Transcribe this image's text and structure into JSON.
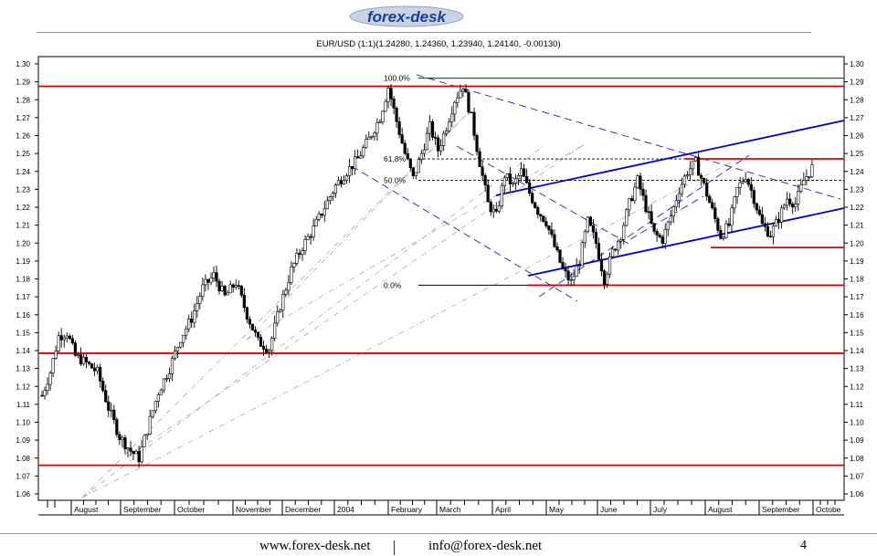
{
  "logo": {
    "text": "forex-desk"
  },
  "chart_data": {
    "type": "candlestick",
    "title": "EUR/USD (1:1)(1.24280, 1.24360, 1.23940, 1.24140, -0.00130)",
    "ylim": [
      1.06,
      1.3
    ],
    "y_ticks": [
      "1.30",
      "1.29",
      "1.28",
      "1.27",
      "1.26",
      "1.25",
      "1.24",
      "1.23",
      "1.22",
      "1.21",
      "1.20",
      "1.19",
      "1.18",
      "1.17",
      "1.16",
      "1.15",
      "1.14",
      "1.13",
      "1.12",
      "1.11",
      "1.10",
      "1.09",
      "1.08",
      "1.07",
      "1.06"
    ],
    "x_ticks": [
      "August",
      "September",
      "October",
      "November",
      "December",
      "2004",
      "February",
      "March",
      "April",
      "May",
      "June",
      "July",
      "August",
      "September",
      "Octobe"
    ],
    "grid": false,
    "price_path": [
      {
        "t": 0,
        "p": 1.115
      },
      {
        "t": 3,
        "p": 1.128
      },
      {
        "t": 6,
        "p": 1.148
      },
      {
        "t": 9,
        "p": 1.15
      },
      {
        "t": 12,
        "p": 1.137
      },
      {
        "t": 16,
        "p": 1.133
      },
      {
        "t": 20,
        "p": 1.128
      },
      {
        "t": 24,
        "p": 1.108
      },
      {
        "t": 28,
        "p": 1.092
      },
      {
        "t": 32,
        "p": 1.084
      },
      {
        "t": 35,
        "p": 1.08
      },
      {
        "t": 38,
        "p": 1.096
      },
      {
        "t": 42,
        "p": 1.117
      },
      {
        "t": 46,
        "p": 1.13
      },
      {
        "t": 50,
        "p": 1.147
      },
      {
        "t": 54,
        "p": 1.158
      },
      {
        "t": 58,
        "p": 1.175
      },
      {
        "t": 62,
        "p": 1.182
      },
      {
        "t": 66,
        "p": 1.17
      },
      {
        "t": 70,
        "p": 1.178
      },
      {
        "t": 74,
        "p": 1.16
      },
      {
        "t": 78,
        "p": 1.145
      },
      {
        "t": 82,
        "p": 1.141
      },
      {
        "t": 86,
        "p": 1.165
      },
      {
        "t": 90,
        "p": 1.185
      },
      {
        "t": 94,
        "p": 1.198
      },
      {
        "t": 98,
        "p": 1.208
      },
      {
        "t": 102,
        "p": 1.22
      },
      {
        "t": 106,
        "p": 1.232
      },
      {
        "t": 110,
        "p": 1.24
      },
      {
        "t": 114,
        "p": 1.247
      },
      {
        "t": 118,
        "p": 1.258
      },
      {
        "t": 122,
        "p": 1.27
      },
      {
        "t": 125,
        "p": 1.287
      },
      {
        "t": 128,
        "p": 1.268
      },
      {
        "t": 131,
        "p": 1.25
      },
      {
        "t": 134,
        "p": 1.236
      },
      {
        "t": 137,
        "p": 1.25
      },
      {
        "t": 140,
        "p": 1.265
      },
      {
        "t": 143,
        "p": 1.252
      },
      {
        "t": 146,
        "p": 1.265
      },
      {
        "t": 149,
        "p": 1.28
      },
      {
        "t": 152,
        "p": 1.288
      },
      {
        "t": 155,
        "p": 1.27
      },
      {
        "t": 158,
        "p": 1.245
      },
      {
        "t": 161,
        "p": 1.222
      },
      {
        "t": 164,
        "p": 1.215
      },
      {
        "t": 167,
        "p": 1.238
      },
      {
        "t": 170,
        "p": 1.232
      },
      {
        "t": 173,
        "p": 1.24
      },
      {
        "t": 176,
        "p": 1.228
      },
      {
        "t": 179,
        "p": 1.218
      },
      {
        "t": 182,
        "p": 1.212
      },
      {
        "t": 185,
        "p": 1.198
      },
      {
        "t": 188,
        "p": 1.185
      },
      {
        "t": 191,
        "p": 1.178
      },
      {
        "t": 194,
        "p": 1.19
      },
      {
        "t": 197,
        "p": 1.212
      },
      {
        "t": 200,
        "p": 1.2
      },
      {
        "t": 203,
        "p": 1.18
      },
      {
        "t": 206,
        "p": 1.195
      },
      {
        "t": 209,
        "p": 1.205
      },
      {
        "t": 212,
        "p": 1.222
      },
      {
        "t": 215,
        "p": 1.235
      },
      {
        "t": 218,
        "p": 1.22
      },
      {
        "t": 221,
        "p": 1.205
      },
      {
        "t": 224,
        "p": 1.202
      },
      {
        "t": 227,
        "p": 1.215
      },
      {
        "t": 230,
        "p": 1.23
      },
      {
        "t": 233,
        "p": 1.24
      },
      {
        "t": 236,
        "p": 1.245
      },
      {
        "t": 239,
        "p": 1.232
      },
      {
        "t": 242,
        "p": 1.218
      },
      {
        "t": 245,
        "p": 1.204
      },
      {
        "t": 248,
        "p": 1.21
      },
      {
        "t": 251,
        "p": 1.23
      },
      {
        "t": 254,
        "p": 1.238
      },
      {
        "t": 257,
        "p": 1.225
      },
      {
        "t": 260,
        "p": 1.21
      },
      {
        "t": 263,
        "p": 1.205
      },
      {
        "t": 266,
        "p": 1.214
      },
      {
        "t": 269,
        "p": 1.225
      },
      {
        "t": 272,
        "p": 1.222
      },
      {
        "t": 275,
        "p": 1.235
      },
      {
        "t": 278,
        "p": 1.242
      }
    ],
    "horizontal_levels": [
      1.2875,
      1.1385,
      1.076
    ],
    "fib_levels": [
      {
        "label": "100.0%",
        "value": 1.292
      },
      {
        "label": "61.8%",
        "value": 1.247
      },
      {
        "label": "50.0%",
        "value": 1.235
      },
      {
        "label": "0.0%",
        "value": 1.1765
      }
    ],
    "right_resistance": [
      1.247,
      1.1975
    ]
  },
  "footer": {
    "website": "www.forex-desk.net",
    "email": "info@forex-desk.net",
    "page": "4"
  },
  "colors": {
    "support_line": "#e00000",
    "trend_line": "#0000cc",
    "dashed_line": "#3333cc",
    "fan_line": "#aaaaaa",
    "candle": "#000000",
    "logo_blue": "#1a3f8f"
  }
}
